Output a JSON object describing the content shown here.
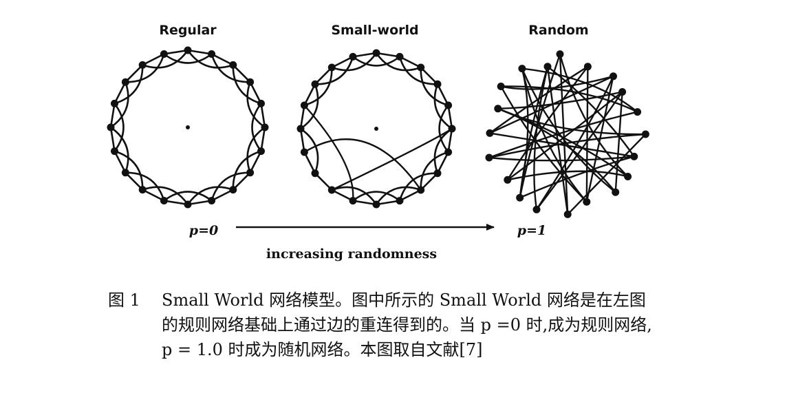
{
  "panels": {
    "regular": {
      "title": "Regular"
    },
    "small_world": {
      "title": "Small-world"
    },
    "random": {
      "title": "Random"
    }
  },
  "axis": {
    "left_label": "p=0",
    "right_label": "p=1",
    "caption": "increasing randomness"
  },
  "caption": {
    "label": "图 1",
    "text": "Small World 网络模型。图中所示的 Small World 网络是在左图的规则网络基础上通过边的重连得到的。当 p =0 时,成为规则网络, p = 1.0 时成为随机网络。本图取自文献[7]"
  },
  "colors": {
    "ink": "#111111",
    "background": "#ffffff"
  }
}
